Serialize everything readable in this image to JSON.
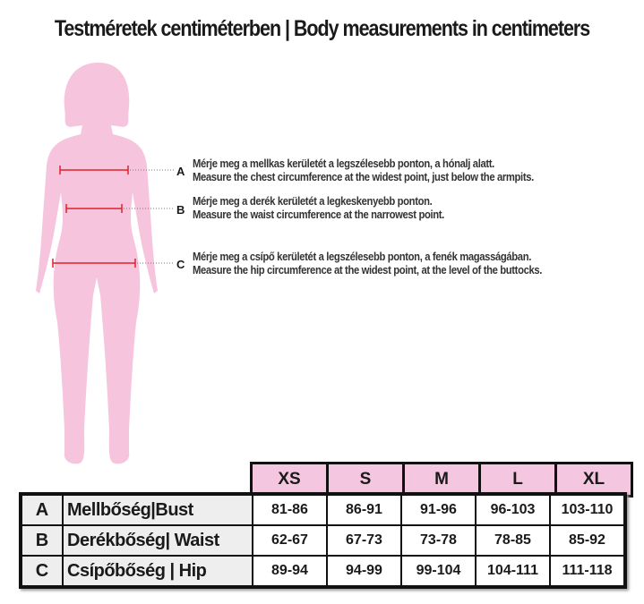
{
  "title": "Testméretek centiméterben | Body measurements in centimeters",
  "colors": {
    "silhouette": "#f7c4de",
    "measure_line": "#e0202a",
    "header_bg": "#f5c6df"
  },
  "measurements": [
    {
      "letter": "A",
      "hu": "Mérje meg a mellkas kerületét a legszélesebb ponton, a hónalj alatt.",
      "en": "Measure the chest circumference at the widest point, just below the armpits."
    },
    {
      "letter": "B",
      "hu": "Mérje meg a derék kerületét a legkeskenyebb ponton.",
      "en": "Measure the waist circumference at the narrowest point."
    },
    {
      "letter": "C",
      "hu": "Mérje meg a csípő kerületét a legszélesebb ponton, a fenék magasságában.",
      "en": "Measure the hip circumference at the widest point, at the level of the buttocks."
    }
  ],
  "table": {
    "sizes": [
      "XS",
      "S",
      "M",
      "L",
      "XL"
    ],
    "rows": [
      {
        "letter": "A",
        "label": "Mellbőség|Bust",
        "values": [
          "81-86",
          "86-91",
          "91-96",
          "96-103",
          "103-110"
        ]
      },
      {
        "letter": "B",
        "label": "Derékbőség| Waist",
        "values": [
          "62-67",
          "67-73",
          "73-78",
          "78-85",
          "85-92"
        ]
      },
      {
        "letter": "C",
        "label": "Csípőbőség | Hip",
        "values": [
          "89-94",
          "94-99",
          "99-104",
          "104-111",
          "111-118"
        ]
      }
    ]
  }
}
